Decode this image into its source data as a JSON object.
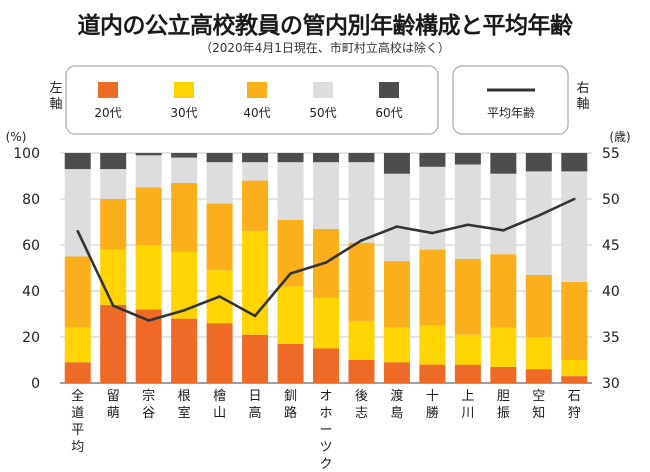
{
  "title": "道内の公立高校教員の管内別年齢構成と平均年齢",
  "subtitle": "（2020年4月1日現在、市町村立高校は除く）",
  "chart_data": {
    "type": "bar",
    "stacked": true,
    "left_axis": {
      "label": "左軸",
      "unit": "(%)",
      "min": 0,
      "max": 100,
      "ticks": [
        "0",
        "20",
        "40",
        "60",
        "80",
        "100"
      ]
    },
    "right_axis": {
      "label": "右軸",
      "unit": "(歳)",
      "min": 30,
      "max": 55,
      "ticks": [
        "30",
        "35",
        "40",
        "45",
        "50",
        "55"
      ]
    },
    "categories": [
      "全道平均",
      "留萌",
      "宗谷",
      "根室",
      "檜山",
      "日高",
      "釧路",
      "オホーツク",
      "後志",
      "渡島",
      "十勝",
      "上川",
      "胆振",
      "空知",
      "石狩"
    ],
    "series": [
      {
        "name": "20代",
        "color": "#ee6a27",
        "values": [
          9,
          34,
          32,
          28,
          26,
          21,
          17,
          15,
          10,
          9,
          8,
          8,
          7,
          6,
          3
        ]
      },
      {
        "name": "30代",
        "color": "#ffd400",
        "values": [
          15,
          24,
          28,
          29,
          23,
          45,
          25,
          22,
          17,
          15,
          17,
          13,
          17,
          14,
          7
        ]
      },
      {
        "name": "40代",
        "color": "#fbaf1a",
        "values": [
          31,
          22,
          25,
          30,
          29,
          22,
          29,
          30,
          34,
          29,
          33,
          33,
          32,
          27,
          34
        ]
      },
      {
        "name": "50代",
        "color": "#dddddd",
        "values": [
          38,
          13,
          14,
          11,
          18,
          8,
          25,
          29,
          35,
          38,
          36,
          41,
          35,
          45,
          48
        ]
      },
      {
        "name": "60代",
        "color": "#4d4d4d",
        "values": [
          7,
          7,
          1,
          2,
          4,
          4,
          4,
          4,
          4,
          9,
          6,
          5,
          9,
          8,
          8
        ]
      }
    ],
    "line": {
      "name": "平均年齢",
      "color": "#333333",
      "axis": "right",
      "values": [
        46.5,
        38.4,
        36.8,
        37.9,
        39.4,
        37.3,
        41.9,
        43.1,
        45.5,
        47.0,
        46.3,
        47.2,
        46.6,
        48.2,
        50.0
      ]
    }
  }
}
